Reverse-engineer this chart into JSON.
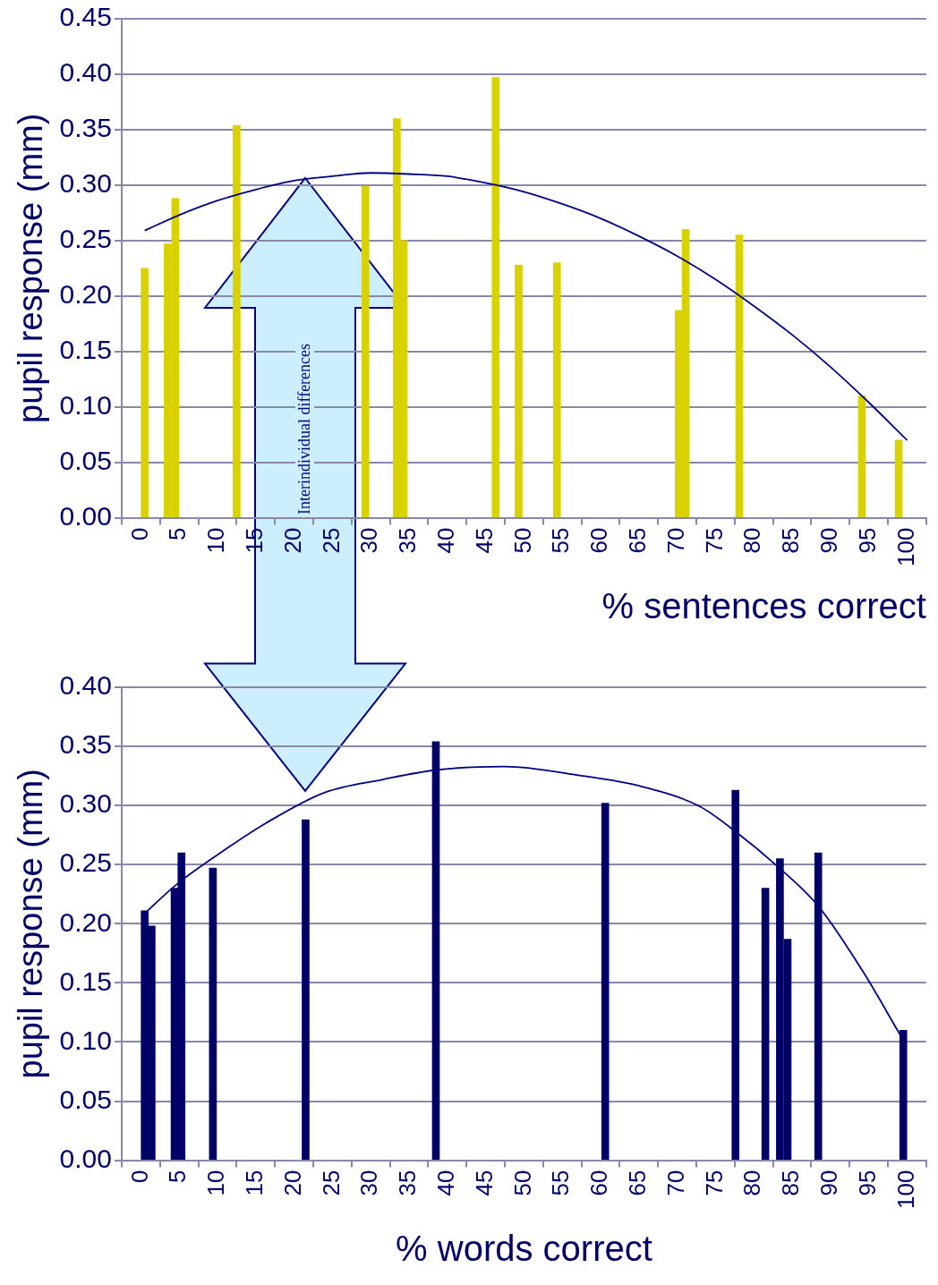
{
  "chart_data": [
    {
      "type": "bar",
      "xlabel": "% sentences correct",
      "ylabel": "pupil response (mm)",
      "xlim": [
        0,
        100
      ],
      "xticks": [
        0,
        5,
        10,
        15,
        20,
        25,
        30,
        35,
        40,
        45,
        50,
        55,
        60,
        65,
        70,
        75,
        80,
        85,
        90,
        95,
        100
      ],
      "ylim": [
        0,
        0.45
      ],
      "yticks": [
        {
          "value": 0,
          "label": "0.00"
        },
        {
          "value": 0.05,
          "label": "0.05"
        },
        {
          "value": 0.1,
          "label": "0.10"
        },
        {
          "value": 0.15,
          "label": "0.15"
        },
        {
          "value": 0.2,
          "label": "0.20"
        },
        {
          "value": 0.25,
          "label": "0.25"
        },
        {
          "value": 0.3,
          "label": "0.30"
        },
        {
          "value": 0.35,
          "label": "0.35"
        },
        {
          "value": 0.4,
          "label": "0.40"
        },
        {
          "value": 0.45,
          "label": "0.45"
        }
      ],
      "grid": "y",
      "legend": false,
      "annotations": [
        "Interindividual differences"
      ],
      "series": [
        {
          "color": "#d9d100",
          "x": [
            0.5,
            3.5,
            4.5,
            12.5,
            29.3,
            33.4,
            34.3,
            46.3,
            49.3,
            54.3,
            70.2,
            71.1,
            78.1,
            94.1,
            98.9
          ],
          "values": [
            0.225,
            0.247,
            0.288,
            0.354,
            0.299,
            0.36,
            0.25,
            0.397,
            0.228,
            0.23,
            0.187,
            0.26,
            0.255,
            0.11,
            0.07
          ]
        },
        {
          "type": "line",
          "color": "#000080",
          "marker": "none",
          "x": [
            0.5,
            5,
            10,
            15,
            20,
            25,
            30,
            35,
            40,
            45,
            50,
            55,
            60,
            65,
            70,
            75,
            80,
            85,
            90,
            95,
            100
          ],
          "values": [
            0.259,
            0.273,
            0.286,
            0.296,
            0.304,
            0.308,
            0.311,
            0.31,
            0.308,
            0.302,
            0.294,
            0.283,
            0.27,
            0.254,
            0.236,
            0.215,
            0.191,
            0.165,
            0.136,
            0.104,
            0.07
          ]
        }
      ]
    },
    {
      "type": "bar",
      "xlabel": "% words correct",
      "ylabel": "pupil response (mm)",
      "xlim": [
        0,
        100
      ],
      "xticks": [
        0,
        5,
        10,
        15,
        20,
        25,
        30,
        35,
        40,
        45,
        50,
        55,
        60,
        65,
        70,
        75,
        80,
        85,
        90,
        95,
        100
      ],
      "ylim": [
        0,
        0.4
      ],
      "yticks": [
        {
          "value": 0,
          "label": "0.00"
        },
        {
          "value": 0.05,
          "label": "0.05"
        },
        {
          "value": 0.1,
          "label": "0.10"
        },
        {
          "value": 0.15,
          "label": "0.15"
        },
        {
          "value": 0.2,
          "label": "0.20"
        },
        {
          "value": 0.25,
          "label": "0.25"
        },
        {
          "value": 0.3,
          "label": "0.30"
        },
        {
          "value": 0.35,
          "label": "0.35"
        },
        {
          "value": 0.4,
          "label": "0.40"
        }
      ],
      "grid": "y",
      "legend": false,
      "series": [
        {
          "color": "#000066",
          "x": [
            0.5,
            1.4,
            4.4,
            5.3,
            9.4,
            21.5,
            38.5,
            60.6,
            77.6,
            81.5,
            83.4,
            84.4,
            88.4,
            99.5
          ],
          "values": [
            0.211,
            0.198,
            0.23,
            0.26,
            0.247,
            0.288,
            0.354,
            0.302,
            0.313,
            0.23,
            0.255,
            0.187,
            0.26,
            0.11
          ]
        },
        {
          "type": "line",
          "color": "#000080",
          "marker": "none",
          "x": [
            0.2,
            4.8,
            10.6,
            16.3,
            24,
            31.6,
            38.5,
            47.4,
            57.7,
            65.4,
            73,
            77.6,
            83,
            88.4,
            94.1,
            99.1
          ],
          "values": [
            0.207,
            0.234,
            0.261,
            0.285,
            0.311,
            0.322,
            0.33,
            0.333,
            0.325,
            0.316,
            0.299,
            0.278,
            0.249,
            0.215,
            0.161,
            0.106
          ]
        }
      ]
    }
  ]
}
